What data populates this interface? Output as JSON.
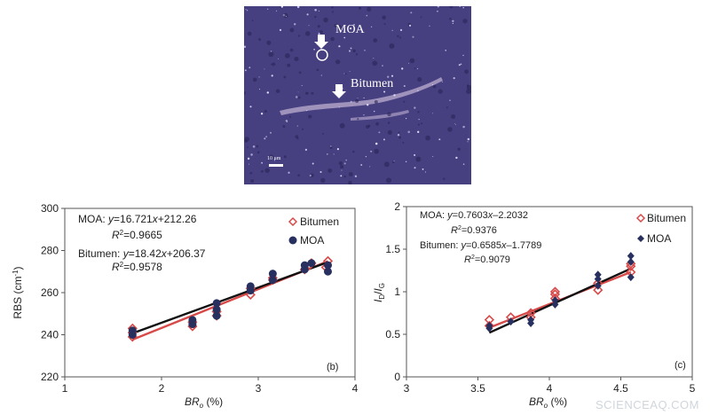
{
  "image": {
    "labels": {
      "moa": "MOA",
      "bitumen": "Bitumen",
      "scale_bar": "10 μm"
    },
    "colors": {
      "background": "#463f80",
      "vein": "#a89cc2",
      "speck": "#e6e4ff"
    }
  },
  "watermark": "SCIENCEAQ.COM",
  "colors": {
    "bitumen": "#d84a4a",
    "moa": "#27305e",
    "fit": "#111111"
  },
  "chart_data": [
    {
      "type": "scatter",
      "panel_label": "(b)",
      "xlabel": "BR",
      "xlabel_sub": "o",
      "xlabel_unit": " (%)",
      "ylabel": "RBS (cm",
      "ylabel_sup": "-1",
      "ylabel_end": ")",
      "xlim": [
        1,
        4
      ],
      "ylim": [
        220,
        300
      ],
      "xticks": [
        "1",
        "2",
        "3",
        "4"
      ],
      "yticks": [
        "220",
        "240",
        "260",
        "280",
        "300"
      ],
      "legend": [
        "Bitumen",
        "MOA"
      ],
      "annotations": {
        "moa_eq_a": "MOA: ",
        "moa_eq_b": "y",
        "moa_eq_c": "=16.721",
        "moa_eq_d": "x",
        "moa_eq_e": "+212.26",
        "moa_r2": "R",
        "moa_r2_val": "=0.9665",
        "bit_eq_a": "Bitumen: ",
        "bit_eq_b": "y",
        "bit_eq_c": "=18.42",
        "bit_eq_d": "x",
        "bit_eq_e": "+206.37",
        "bit_r2": "R",
        "bit_r2_val": "=0.9578"
      },
      "series": [
        {
          "name": "Bitumen",
          "marker": "diamond-open",
          "x": [
            1.7,
            1.7,
            1.7,
            2.32,
            2.32,
            2.57,
            2.57,
            2.92,
            2.92,
            3.15,
            3.15,
            3.48,
            3.53,
            3.55,
            3.7,
            3.72
          ],
          "y": [
            239,
            241,
            243,
            244,
            246,
            249,
            251,
            259,
            262,
            266,
            267,
            271,
            273,
            274,
            272,
            275
          ]
        },
        {
          "name": "MOA",
          "marker": "circle",
          "x": [
            1.7,
            1.7,
            2.32,
            2.32,
            2.57,
            2.57,
            2.57,
            2.92,
            2.92,
            3.15,
            3.15,
            3.48,
            3.48,
            3.55,
            3.72,
            3.72
          ],
          "y": [
            240,
            242,
            245,
            247,
            249,
            252,
            255,
            261,
            263,
            266,
            269,
            271,
            273,
            274,
            270,
            273
          ]
        }
      ],
      "fits": [
        {
          "name": "Bitumen",
          "slope": 18.42,
          "intercept": 206.37,
          "x_range": [
            1.7,
            3.72
          ]
        },
        {
          "name": "MOA",
          "slope": 16.721,
          "intercept": 212.26,
          "x_range": [
            1.7,
            3.72
          ]
        }
      ]
    },
    {
      "type": "scatter",
      "panel_label": "(c)",
      "xlabel": "BR",
      "xlabel_sub": "o",
      "xlabel_unit": " (%)",
      "ylabel_a": "I",
      "ylabel_a_sub": "D",
      "ylabel_mid": "/",
      "ylabel_b": "I",
      "ylabel_b_sub": "G",
      "xlim": [
        3,
        5
      ],
      "ylim": [
        0,
        2
      ],
      "xticks": [
        "3",
        "3.5",
        "4",
        "4.5",
        "5"
      ],
      "yticks": [
        "0",
        "0.5",
        "1",
        "1.5",
        "2"
      ],
      "legend": [
        "Bitumen",
        "MOA"
      ],
      "annotations": {
        "moa_eq_a": "MOA: ",
        "moa_eq_b": "y",
        "moa_eq_c": "=0.7603",
        "moa_eq_d": "x",
        "moa_eq_e": "–2.2032",
        "moa_r2": "R",
        "moa_r2_val": "=0.9376",
        "bit_eq_a": "Bitumen: ",
        "bit_eq_b": "y",
        "bit_eq_c": "=0.6585",
        "bit_eq_d": "x",
        "bit_eq_e": "–1.7789",
        "bit_r2": "R",
        "bit_r2_val": "=0.9079"
      },
      "series": [
        {
          "name": "Bitumen",
          "marker": "diamond-open",
          "x": [
            3.58,
            3.58,
            3.73,
            3.87,
            3.87,
            4.04,
            4.04,
            4.04,
            4.34,
            4.34,
            4.57,
            4.57,
            4.57
          ],
          "y": [
            0.6,
            0.67,
            0.7,
            0.7,
            0.75,
            0.92,
            0.97,
            1.0,
            1.02,
            1.1,
            1.23,
            1.3,
            1.33
          ]
        },
        {
          "name": "MOA",
          "marker": "diamond-filled",
          "x": [
            3.58,
            3.58,
            3.73,
            3.87,
            3.87,
            4.04,
            4.04,
            4.34,
            4.34,
            4.34,
            4.57,
            4.57,
            4.57
          ],
          "y": [
            0.57,
            0.6,
            0.65,
            0.63,
            0.67,
            0.85,
            0.9,
            1.07,
            1.15,
            1.2,
            1.17,
            1.35,
            1.42
          ]
        }
      ],
      "fits": [
        {
          "name": "Bitumen",
          "slope": 0.6585,
          "intercept": -1.7789,
          "x_range": [
            3.58,
            4.57
          ]
        },
        {
          "name": "MOA",
          "slope": 0.7603,
          "intercept": -2.2032,
          "x_range": [
            3.58,
            4.57
          ]
        }
      ]
    }
  ]
}
